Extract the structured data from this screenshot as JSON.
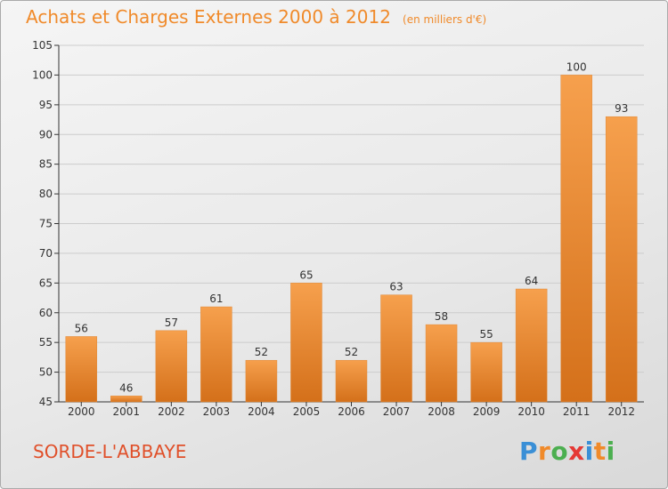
{
  "header": {
    "title": "Achats et Charges Externes 2000 à 2012",
    "subtitle": "(en milliers d'€)"
  },
  "footer": {
    "commune": "SORDE-L'ABBAYE",
    "logo_text": "Proxiti",
    "logo_colors": [
      "#3a8fd6",
      "#f08a2a",
      "#4caf50",
      "#e53935",
      "#3a8fd6",
      "#f08a2a",
      "#4caf50"
    ]
  },
  "colors": {
    "title": "#f08a2a",
    "commune": "#e0502a",
    "bar_light": "#f6a04d",
    "bar_dark": "#d4701a",
    "grid": "#cccccc",
    "axis": "#333333"
  },
  "chart_data": {
    "type": "bar",
    "title": "Achats et Charges Externes 2000 à 2012",
    "subtitle": "(en milliers d'€)",
    "xlabel": "",
    "ylabel": "",
    "categories": [
      "2000",
      "2001",
      "2002",
      "2003",
      "2004",
      "2005",
      "2006",
      "2007",
      "2008",
      "2009",
      "2010",
      "2011",
      "2012"
    ],
    "values": [
      56,
      46,
      57,
      61,
      52,
      65,
      52,
      63,
      58,
      55,
      64,
      100,
      93
    ],
    "value_labels": [
      "56",
      "46",
      "57",
      "61",
      "52",
      "65",
      "52",
      "63",
      "58",
      "55",
      "64",
      "100",
      "93"
    ],
    "ylim": [
      45,
      105
    ],
    "yticks": [
      45,
      50,
      55,
      60,
      65,
      70,
      75,
      80,
      85,
      90,
      95,
      100,
      105
    ],
    "ytick_labels": [
      "45",
      "50",
      "55",
      "60",
      "65",
      "70",
      "75",
      "80",
      "85",
      "90",
      "95",
      "100",
      "105"
    ],
    "grid": true,
    "legend": "none"
  }
}
